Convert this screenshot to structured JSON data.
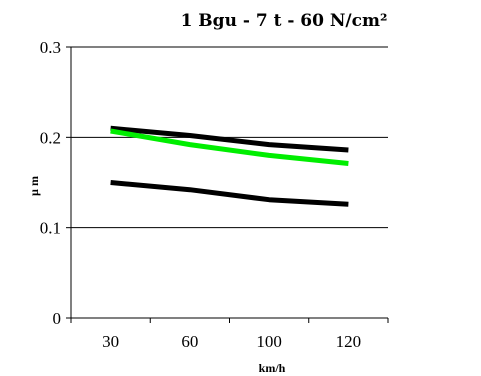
{
  "chart_data": {
    "type": "line",
    "title": "1 Bgu - 7 t - 60 N/cm²",
    "xlabel": "km/h",
    "ylabel": "µ m",
    "categories": [
      "30",
      "60",
      "100",
      "120"
    ],
    "x_tick_labels": [
      "30",
      "60",
      "100",
      "120"
    ],
    "y_tick_labels": [
      "0",
      "0.1",
      "0.2",
      "0.3"
    ],
    "ylim": [
      0,
      0.3
    ],
    "y_ticks": [
      0,
      0.1,
      0.2,
      0.3
    ],
    "grid": "horizontal",
    "series": [
      {
        "color": "#000000",
        "values": [
          0.21,
          0.202,
          0.192,
          0.186
        ]
      },
      {
        "color": "#00ee00",
        "values": [
          0.207,
          0.192,
          0.18,
          0.171
        ]
      },
      {
        "color": "#000000",
        "values": [
          0.15,
          0.142,
          0.131,
          0.126
        ]
      }
    ]
  }
}
